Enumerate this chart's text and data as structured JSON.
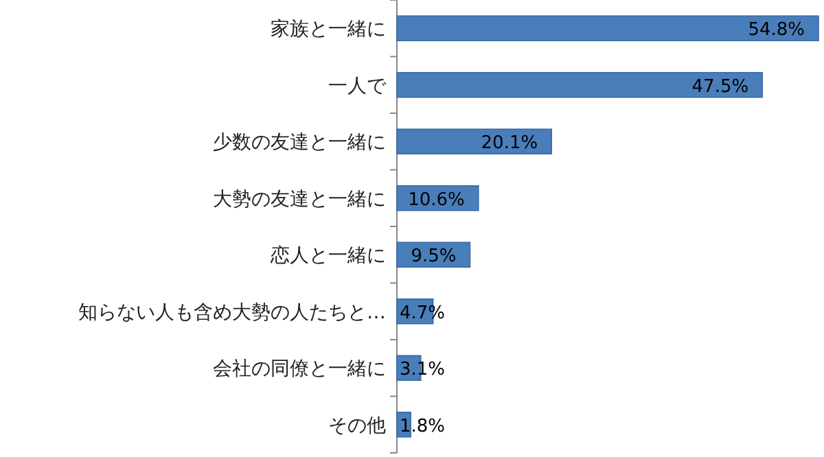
{
  "chart_data": {
    "type": "bar",
    "orientation": "horizontal",
    "color": "#4a7ebb",
    "categories": [
      "家族と一緒に",
      "一人で",
      "少数の友達と一緒に",
      "大勢の友達と一緒に",
      "恋人と一緒に",
      "知らない人も含め大勢の人たちと…",
      "会社の同僚と一緒に",
      "その他"
    ],
    "values": [
      54.8,
      47.5,
      20.1,
      10.6,
      9.5,
      4.7,
      3.1,
      1.8
    ],
    "value_labels": [
      "54.8%",
      "47.5%",
      "20.1%",
      "10.6%",
      "9.5%",
      "4.7%",
      "3.1%",
      "1.8%"
    ]
  }
}
